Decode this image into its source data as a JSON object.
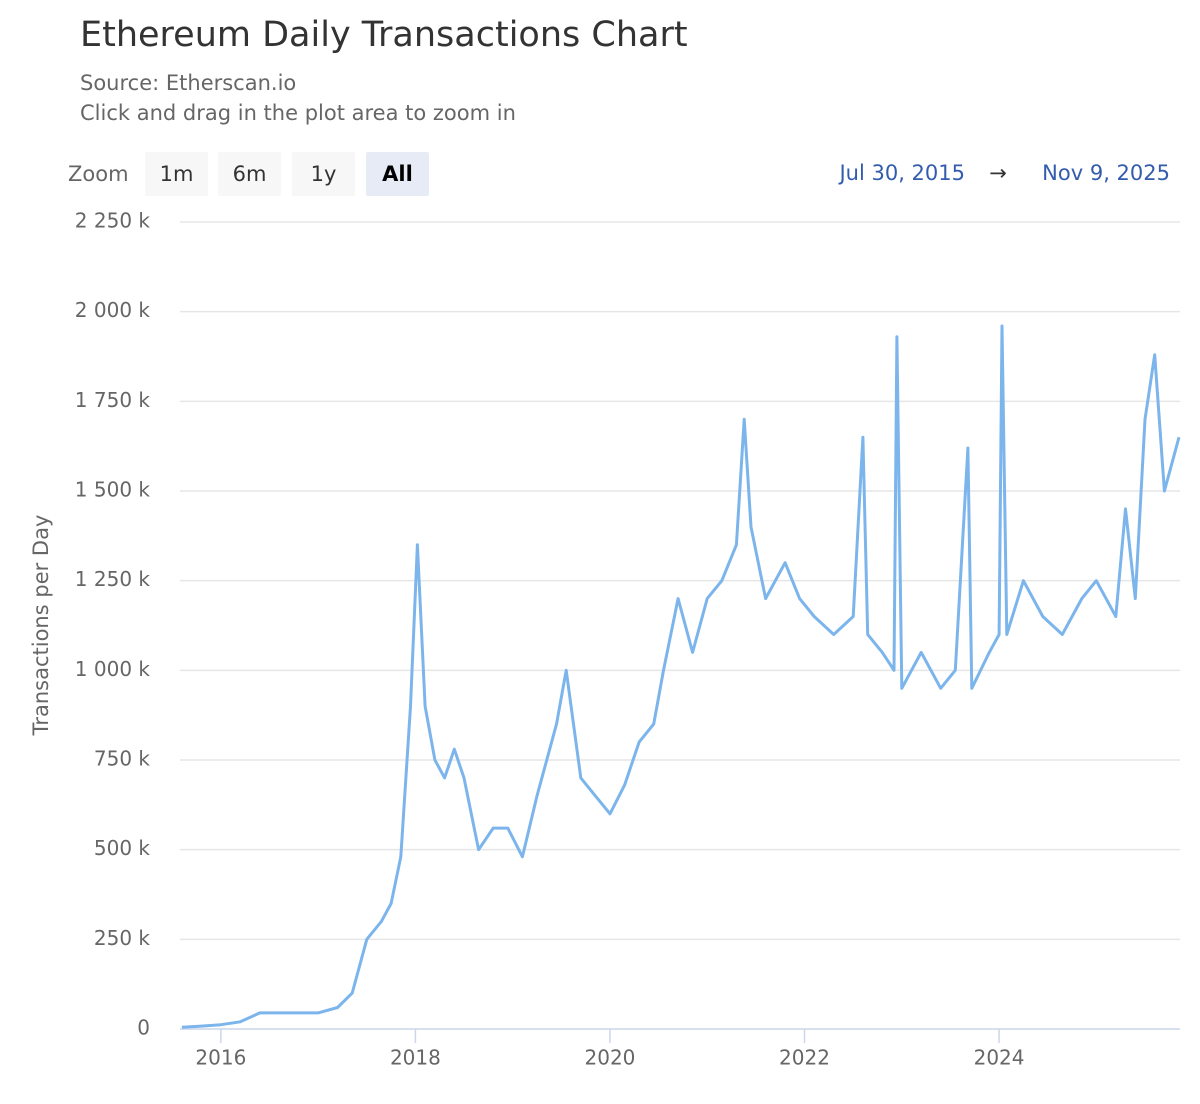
{
  "chart_data": {
    "type": "line",
    "title": "Ethereum Daily Transactions Chart",
    "source": "Source: Etherscan.io",
    "subtitle": "Click and drag in the plot area to zoom in",
    "range_selector": {
      "label": "Zoom",
      "buttons": [
        "1m",
        "6m",
        "1y",
        "All"
      ],
      "selected": 3
    },
    "range": {
      "from": "Jul 30, 2015",
      "separator": "→",
      "to": "Nov 9, 2025"
    },
    "y_label": "Transactions per Day",
    "color": "#7cb5ec",
    "grid": true,
    "xlim": [
      2015.58,
      2025.86
    ],
    "xticks": [
      2016,
      2018,
      2020,
      2022,
      2024
    ],
    "ylim": [
      0,
      2250000
    ],
    "yticks": [
      0,
      {
        "value": 250000,
        "label": "250 k"
      },
      {
        "value": 500000,
        "label": "500 k"
      },
      {
        "value": 750000,
        "label": "750 k"
      },
      {
        "value": 1000000,
        "label": "1 000 k"
      },
      {
        "value": 1250000,
        "label": "1 250 k"
      },
      {
        "value": 1500000,
        "label": "1 500 k"
      },
      {
        "value": 1750000,
        "label": "1 750 k"
      },
      {
        "value": 2000000,
        "label": "2 000 k"
      },
      {
        "value": 2250000,
        "label": "2 250 k"
      }
    ],
    "x": [
      2015.6,
      2015.8,
      2016.0,
      2016.2,
      2016.4,
      2016.6,
      2016.8,
      2017.0,
      2017.2,
      2017.35,
      2017.5,
      2017.65,
      2017.75,
      2017.85,
      2017.95,
      2018.02,
      2018.1,
      2018.2,
      2018.3,
      2018.4,
      2018.5,
      2018.65,
      2018.8,
      2018.95,
      2019.1,
      2019.25,
      2019.45,
      2019.55,
      2019.7,
      2019.85,
      2020.0,
      2020.15,
      2020.3,
      2020.45,
      2020.55,
      2020.7,
      2020.85,
      2021.0,
      2021.15,
      2021.3,
      2021.38,
      2021.45,
      2021.6,
      2021.8,
      2021.95,
      2022.1,
      2022.3,
      2022.5,
      2022.6,
      2022.65,
      2022.8,
      2022.92,
      2022.95,
      2023.0,
      2023.2,
      2023.4,
      2023.55,
      2023.68,
      2023.72,
      2023.9,
      2024.0,
      2024.03,
      2024.08,
      2024.25,
      2024.45,
      2024.65,
      2024.85,
      2025.0,
      2025.2,
      2025.3,
      2025.4,
      2025.5,
      2025.6,
      2025.7,
      2025.85
    ],
    "values": [
      5000,
      8000,
      12000,
      20000,
      45000,
      45000,
      45000,
      45000,
      60000,
      100000,
      250000,
      300000,
      350000,
      480000,
      900000,
      1350000,
      900000,
      750000,
      700000,
      780000,
      700000,
      500000,
      560000,
      560000,
      480000,
      650000,
      850000,
      1000000,
      700000,
      650000,
      600000,
      680000,
      800000,
      850000,
      1000000,
      1200000,
      1050000,
      1200000,
      1250000,
      1350000,
      1700000,
      1400000,
      1200000,
      1300000,
      1200000,
      1150000,
      1100000,
      1150000,
      1650000,
      1100000,
      1050000,
      1000000,
      1930000,
      950000,
      1050000,
      950000,
      1000000,
      1620000,
      950000,
      1050000,
      1100000,
      1960000,
      1100000,
      1250000,
      1150000,
      1100000,
      1200000,
      1250000,
      1150000,
      1450000,
      1200000,
      1700000,
      1880000,
      1500000,
      1650000
    ]
  }
}
